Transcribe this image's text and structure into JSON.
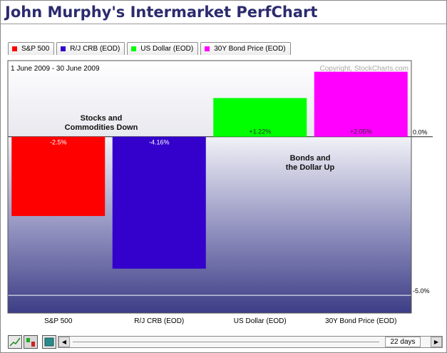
{
  "header": {
    "title": "John Murphy's Intermarket PerfChart"
  },
  "legend": [
    {
      "label": "S&P 500",
      "color": "#ff0000"
    },
    {
      "label": "R/J CRB (EOD)",
      "color": "#3300cc"
    },
    {
      "label": "US Dollar (EOD)",
      "color": "#00ff00"
    },
    {
      "label": "30Y Bond Price (EOD)",
      "color": "#ff00ff"
    }
  ],
  "chart_data": {
    "type": "bar",
    "title": "John Murphy's Intermarket PerfChart",
    "date_range": "1 June 2009 - 30 June 2009",
    "copyright": "Copyright, StockCharts.com",
    "categories": [
      "S&P 500",
      "R/J CRB (EOD)",
      "US Dollar (EOD)",
      "30Y Bond Price (EOD)"
    ],
    "values": [
      -2.5,
      -4.16,
      1.22,
      2.05
    ],
    "value_labels": [
      "-2.5%",
      "-4.16%",
      "+1.22%",
      "+2.05%"
    ],
    "colors": [
      "#ff0000",
      "#3300cc",
      "#00ff00",
      "#ff00ff"
    ],
    "yticks": [
      {
        "value": 0.0,
        "label": "0.0%"
      },
      {
        "value": -5.0,
        "label": "-5.0%"
      }
    ],
    "ylim": [
      -5.56,
      2.4
    ],
    "annotations": [
      {
        "lines": [
          "Stocks and",
          "Commodities Down"
        ]
      },
      {
        "lines": [
          "Bonds and",
          "the Dollar Up"
        ]
      }
    ]
  },
  "controls": {
    "days_label": "22 days",
    "prev_arrow": "◀",
    "next_arrow": "▶"
  }
}
